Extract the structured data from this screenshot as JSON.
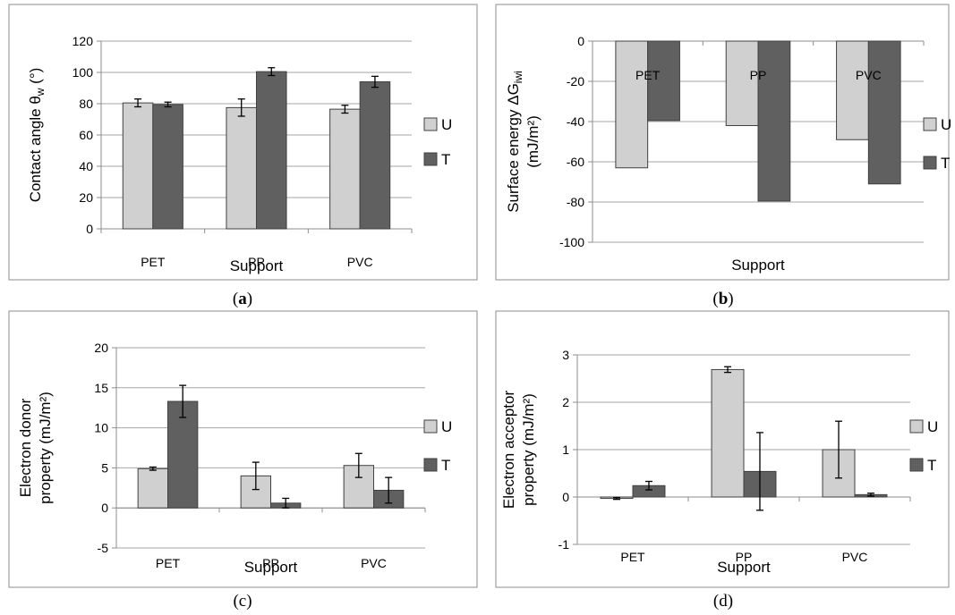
{
  "colors": {
    "U": "#d0d0d0",
    "T": "#606060"
  },
  "chart_data": [
    {
      "type": "bar",
      "caption": "(a)",
      "categories": [
        "PET",
        "PP",
        "PVC"
      ],
      "series": [
        {
          "name": "U",
          "values": [
            80.5,
            77.5,
            76.5
          ],
          "errors": [
            2.5,
            5.5,
            2.5
          ]
        },
        {
          "name": "T",
          "values": [
            79.5,
            100.5,
            94.0
          ],
          "errors": [
            1.5,
            2.5,
            3.5
          ]
        }
      ],
      "xlabel": "Support",
      "ylabel": "Contact angle θw (°)",
      "ylim": [
        0,
        120
      ],
      "yticks": [
        0,
        20,
        40,
        60,
        80,
        100,
        120
      ],
      "ytick_labels": [
        "0",
        "20",
        "40",
        "60",
        "80",
        "100",
        "120"
      ],
      "grid": true,
      "legend_position": "right"
    },
    {
      "type": "bar",
      "caption": "(b)",
      "categories": [
        "PET",
        "PP",
        "PVC"
      ],
      "series": [
        {
          "name": "U",
          "values": [
            -63,
            -42,
            -49
          ]
        },
        {
          "name": "T",
          "values": [
            -39.5,
            -79.5,
            -71
          ]
        }
      ],
      "xlabel": "Support",
      "ylabel": "Surface energy ΔGiwi (mJ/m²)",
      "ylim": [
        -100,
        0
      ],
      "yticks": [
        -100,
        -80,
        -60,
        -40,
        -20,
        0
      ],
      "ytick_labels": [
        "-100",
        "-80",
        "-60",
        "-40",
        "-20",
        "0"
      ],
      "grid": true,
      "legend_position": "right"
    },
    {
      "type": "bar",
      "caption": "(c)",
      "categories": [
        "PET",
        "PP",
        "PVC"
      ],
      "series": [
        {
          "name": "U",
          "values": [
            4.9,
            4.0,
            5.3
          ],
          "errors": [
            0.2,
            1.7,
            1.5
          ]
        },
        {
          "name": "T",
          "values": [
            13.3,
            0.6,
            2.2
          ],
          "errors": [
            2.0,
            0.6,
            1.6
          ]
        }
      ],
      "xlabel": "Support",
      "ylabel": "Electron donor property (mJ/m²)",
      "ylim": [
        -5,
        20
      ],
      "yticks": [
        -5,
        0,
        5,
        10,
        15,
        20
      ],
      "ytick_labels": [
        "-5",
        "0",
        "5",
        "10",
        "15",
        "20"
      ],
      "grid": true,
      "legend_position": "right"
    },
    {
      "type": "bar",
      "caption": "(d)",
      "categories": [
        "PET",
        "PP",
        "PVC"
      ],
      "series": [
        {
          "name": "U",
          "values": [
            -0.03,
            2.69,
            1.0
          ],
          "errors": [
            0.02,
            0.06,
            0.6
          ]
        },
        {
          "name": "T",
          "values": [
            0.24,
            0.54,
            0.05
          ],
          "errors": [
            0.09,
            0.82,
            0.03
          ]
        }
      ],
      "xlabel": "Support",
      "ylabel": "Electron acceptor property (mJ/m²)",
      "ylim": [
        -1,
        3
      ],
      "yticks": [
        -1,
        0,
        1,
        2,
        3
      ],
      "ytick_labels": [
        "-1",
        "0",
        "1",
        "2",
        "3"
      ],
      "grid": true,
      "legend_position": "right"
    }
  ]
}
